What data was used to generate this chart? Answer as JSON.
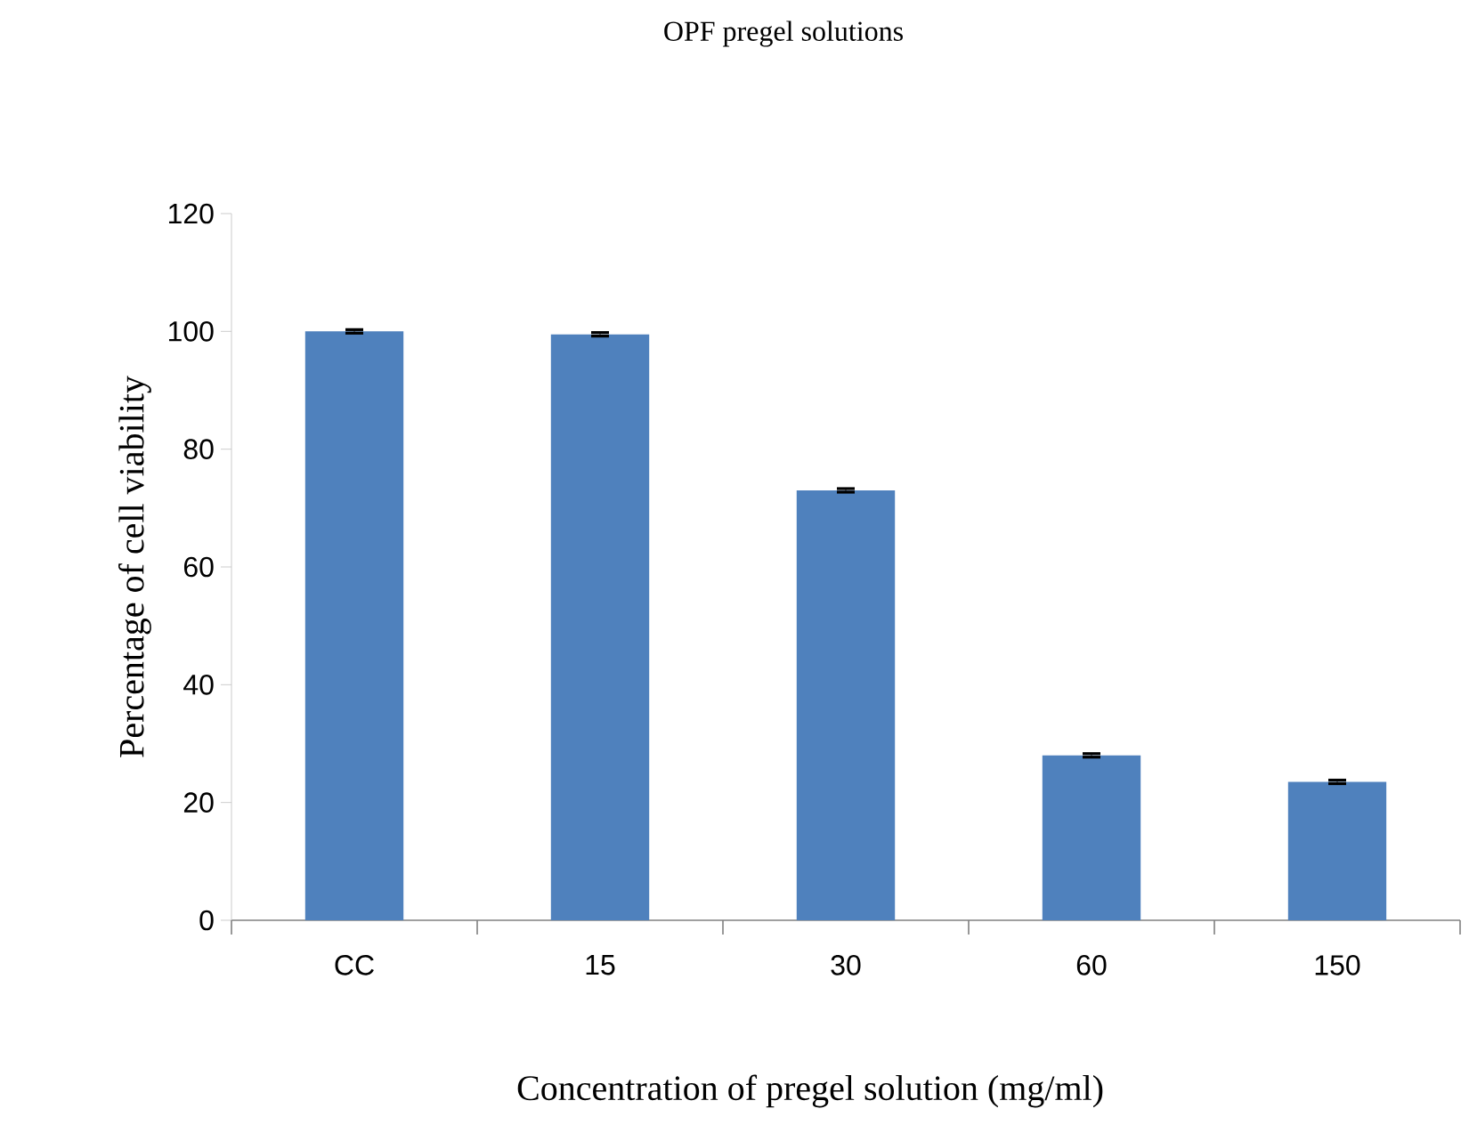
{
  "chart_data": {
    "type": "bar",
    "title": "OPF pregel solutions",
    "xlabel": "Concentration of pregel solution (mg/ml)",
    "ylabel": "Percentage of cell viability",
    "categories": [
      "CC",
      "15",
      "30",
      "60",
      "150"
    ],
    "values": [
      100,
      99.5,
      73,
      28,
      23.5
    ],
    "errors": [
      0.3,
      0.3,
      0.3,
      0.3,
      0.3
    ],
    "color": "#4f81bd",
    "ylim": [
      0,
      120
    ],
    "yticks": [
      0,
      20,
      40,
      60,
      80,
      100,
      120
    ],
    "grid": false
  }
}
